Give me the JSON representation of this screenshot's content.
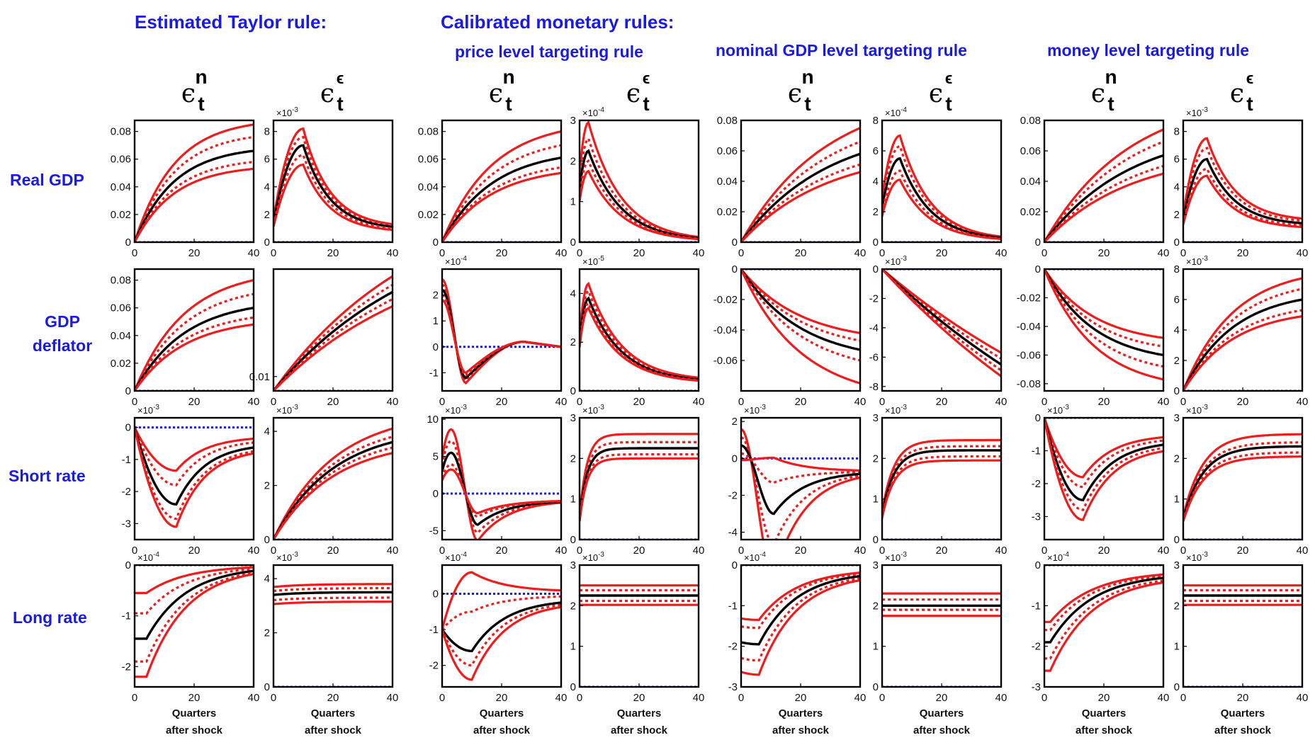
{
  "headers": {
    "estimated": "Estimated Taylor rule:",
    "calibrated": "Calibrated monetary rules:",
    "rules": [
      "price level targeting rule",
      "nominal GDP level targeting rule",
      "money level targeting rule"
    ]
  },
  "rows": [
    "Real GDP",
    "GDP\ndeflator",
    "Short rate",
    "Long rate"
  ],
  "shock_cols": [
    {
      "base": "ϵ",
      "sup": "n",
      "sub": "t"
    },
    {
      "base": "ϵ",
      "sup": "ϵ",
      "sub": "t"
    }
  ],
  "xlabel": [
    "Quarters",
    "after shock"
  ],
  "colors": {
    "header": "#1a1ae6",
    "median": "#000000",
    "band": "#ee1c1c",
    "zero": "#1a1ae6"
  },
  "chart_data": {
    "type": "line",
    "x": {
      "range": [
        0,
        40
      ],
      "ticks": [
        0,
        20,
        40
      ]
    },
    "description_series": [
      "median",
      "inner-band-upper",
      "inner-band-lower",
      "outer-band-upper",
      "outer-band-lower",
      "zero-line"
    ],
    "panels": [
      {
        "row": 0,
        "col": 0,
        "ylim": [
          0,
          0.088
        ],
        "yticks": [
          "0",
          "0.02",
          "0.04",
          "0.06",
          "0.08"
        ],
        "yvals": [
          0,
          0.02,
          0.04,
          0.06,
          0.08
        ],
        "mult": "",
        "shape": "rise",
        "k": 0.075,
        "peak": 0.066,
        "bands": [
          0.085,
          0.076,
          0.058,
          0.053
        ]
      },
      {
        "row": 0,
        "col": 1,
        "ylim": [
          0,
          8.8
        ],
        "yticks": [
          "0",
          "2",
          "4",
          "6",
          "8"
        ],
        "yvals": [
          0,
          2,
          4,
          6,
          8
        ],
        "mult": "×10^-3",
        "shape": "hump",
        "y0": 1.4,
        "tp": 10,
        "peak": 7.0,
        "end": 0.9,
        "bands": [
          8.2,
          7.6,
          6.3,
          5.6
        ]
      },
      {
        "row": 0,
        "col": 2,
        "ylim": [
          0,
          0.088
        ],
        "yticks": [
          "0",
          "0.02",
          "0.04",
          "0.06",
          "0.08"
        ],
        "yvals": [
          0,
          0.02,
          0.04,
          0.06,
          0.08
        ],
        "mult": "",
        "shape": "rise",
        "k": 0.06,
        "peak": 0.061,
        "bands": [
          0.08,
          0.07,
          0.054,
          0.05
        ]
      },
      {
        "row": 0,
        "col": 3,
        "ylim": [
          0,
          3.0
        ],
        "yticks": [
          "0",
          "1",
          "2",
          "3"
        ],
        "yvals": [
          0,
          1,
          2,
          3
        ],
        "mult": "×10^-4",
        "shape": "hump",
        "y0": 1.3,
        "tp": 3,
        "peak": 2.25,
        "end": 0.02,
        "bands": [
          2.95,
          2.55,
          2.0,
          1.75
        ]
      },
      {
        "row": 0,
        "col": 4,
        "ylim": [
          0,
          0.08
        ],
        "yticks": [
          "0",
          "0.02",
          "0.04",
          "0.06",
          "0.08"
        ],
        "yvals": [
          0,
          0.02,
          0.04,
          0.06,
          0.08
        ],
        "mult": "",
        "shape": "rise",
        "k": 0.035,
        "peak": 0.058,
        "bands": [
          0.075,
          0.066,
          0.051,
          0.046
        ]
      },
      {
        "row": 0,
        "col": 5,
        "ylim": [
          0,
          8.0
        ],
        "yticks": [
          "0",
          "2",
          "4",
          "6",
          "8"
        ],
        "yvals": [
          0,
          2,
          4,
          6,
          8
        ],
        "mult": "×10^-4",
        "shape": "hump",
        "y0": 2.3,
        "tp": 6,
        "peak": 5.5,
        "end": 0.1,
        "bands": [
          7.0,
          6.3,
          4.7,
          4.1
        ]
      },
      {
        "row": 0,
        "col": 6,
        "ylim": [
          0,
          0.08
        ],
        "yticks": [
          "0",
          "0.02",
          "0.04",
          "0.06",
          "0.08"
        ],
        "yvals": [
          0,
          0.02,
          0.04,
          0.06,
          0.08
        ],
        "mult": "",
        "shape": "rise",
        "k": 0.035,
        "peak": 0.057,
        "bands": [
          0.074,
          0.066,
          0.05,
          0.045
        ]
      },
      {
        "row": 0,
        "col": 7,
        "ylim": [
          0,
          8.8
        ],
        "yticks": [
          "0",
          "2",
          "4",
          "6",
          "8"
        ],
        "yvals": [
          0,
          2,
          4,
          6,
          8
        ],
        "mult": "×10^-3",
        "shape": "hump",
        "y0": 1.6,
        "tp": 8,
        "peak": 6.0,
        "end": 1.2,
        "bands": [
          7.5,
          6.8,
          5.3,
          4.8
        ]
      },
      {
        "row": 1,
        "col": 0,
        "ylim": [
          0,
          0.088
        ],
        "yticks": [
          "0",
          "0.02",
          "0.04",
          "0.06",
          "0.08"
        ],
        "yvals": [
          0,
          0.02,
          0.04,
          0.06,
          0.08
        ],
        "mult": "",
        "shape": "rise",
        "k": 0.06,
        "peak": 0.06,
        "bands": [
          0.08,
          0.07,
          0.053,
          0.048
        ]
      },
      {
        "row": 1,
        "col": 1,
        "ylim": [
          0,
          0.085
        ],
        "yticks": [
          "0.01"
        ],
        "yvals": [
          0.01
        ],
        "mult": "",
        "shape": "rise",
        "k": 0.02,
        "peak": 0.069,
        "bands": [
          0.08,
          0.074,
          0.064,
          0.059
        ]
      },
      {
        "row": 1,
        "col": 2,
        "ylim": [
          -1.7,
          3.0
        ],
        "yticks": [
          "-1",
          "0",
          "1",
          "2"
        ],
        "yvals": [
          -1,
          0,
          1,
          2
        ],
        "mult": "×10^-4",
        "shape": "osc",
        "y0": 2.2,
        "trough": -1.2,
        "tt": 8,
        "over": 0.2,
        "end": 0,
        "bands": [
          2.6,
          2.4,
          2.0,
          1.8
        ]
      },
      {
        "row": 1,
        "col": 3,
        "ylim": [
          0,
          5.0
        ],
        "yticks": [
          "0",
          "2",
          "4"
        ],
        "yvals": [
          0,
          2,
          4
        ],
        "mult": "×10^-5",
        "shape": "hump",
        "y0": 2.0,
        "tp": 3,
        "peak": 3.8,
        "end": 0.35,
        "bands": [
          4.4,
          4.1,
          3.6,
          3.4
        ]
      },
      {
        "row": 1,
        "col": 4,
        "ylim": [
          -0.08,
          0
        ],
        "yticks": [
          "0",
          "-0.02",
          "-0.04",
          "-0.06"
        ],
        "yvals": [
          0,
          -0.02,
          -0.04,
          -0.06
        ],
        "mult": "",
        "shape": "fall",
        "k": 0.05,
        "peak": -0.053,
        "bands": [
          -0.042,
          -0.047,
          -0.06,
          -0.075
        ]
      },
      {
        "row": 1,
        "col": 5,
        "ylim": [
          -8.3,
          0
        ],
        "yticks": [
          "0",
          "-2",
          "-4",
          "-6",
          "-8"
        ],
        "yvals": [
          0,
          -2,
          -4,
          -6,
          -8
        ],
        "mult": "×10^-3",
        "shape": "fall",
        "k": 0.01,
        "peak": -6.5,
        "bands": [
          -5.7,
          -6.1,
          -6.9,
          -7.3
        ]
      },
      {
        "row": 1,
        "col": 6,
        "ylim": [
          -0.085,
          0
        ],
        "yticks": [
          "0",
          "-0.02",
          "-0.04",
          "-0.06",
          "-0.08"
        ],
        "yvals": [
          0,
          -0.02,
          -0.04,
          -0.06,
          -0.08
        ],
        "mult": "",
        "shape": "fall",
        "k": 0.06,
        "peak": -0.06,
        "bands": [
          -0.048,
          -0.054,
          -0.068,
          -0.077
        ]
      },
      {
        "row": 1,
        "col": 7,
        "ylim": [
          0,
          8.0
        ],
        "yticks": [
          "0",
          "2",
          "4",
          "6",
          "8"
        ],
        "yvals": [
          0,
          2,
          4,
          6,
          8
        ],
        "mult": "×10^-3",
        "shape": "rise",
        "k": 0.06,
        "peak": 6.0,
        "bands": [
          7.4,
          6.7,
          5.3,
          4.9
        ]
      },
      {
        "row": 2,
        "col": 0,
        "ylim": [
          -3.5,
          0.3
        ],
        "yticks": [
          "-3",
          "-2",
          "-1",
          "0"
        ],
        "yvals": [
          -3,
          -2,
          -1,
          0
        ],
        "mult": "×10^-3",
        "shape": "dip",
        "y0": 0,
        "tt": 14,
        "trough": -2.4,
        "end": -0.5,
        "bands": [
          -1.35,
          -1.8,
          -2.85,
          -3.1
        ]
      },
      {
        "row": 2,
        "col": 1,
        "ylim": [
          0,
          4.5
        ],
        "yticks": [
          "0",
          "2",
          "4"
        ],
        "yvals": [
          0,
          2,
          4
        ],
        "mult": "×10^-3",
        "shape": "rise",
        "k": 0.05,
        "peak": 3.6,
        "bands": [
          4.1,
          3.8,
          3.4,
          3.2
        ]
      },
      {
        "row": 2,
        "col": 2,
        "ylim": [
          -6.2,
          10.2
        ],
        "yticks": [
          "-5",
          "0",
          "5",
          "10"
        ],
        "yvals": [
          -5,
          0,
          5,
          10
        ],
        "mult": "×10^-3",
        "shape": "osc",
        "y0": 3.0,
        "tp": 3,
        "peak": 5.5,
        "trough": -4.2,
        "tt": 12,
        "end": -0.9,
        "bands": [
          8.8,
          7.2,
          4.0,
          3.3
        ]
      },
      {
        "row": 2,
        "col": 3,
        "ylim": [
          0,
          3.0
        ],
        "yticks": [
          "0",
          "1",
          "2",
          "3"
        ],
        "yvals": [
          0,
          1,
          2,
          3
        ],
        "mult": "×10^-3",
        "shape": "sat",
        "y0": 0.5,
        "k": 0.4,
        "peak": 2.25,
        "bands": [
          2.6,
          2.4,
          2.1,
          2.0
        ]
      },
      {
        "row": 2,
        "col": 4,
        "ylim": [
          -4.4,
          2.2
        ],
        "yticks": [
          "-4",
          "-2",
          "0",
          "2"
        ],
        "yvals": [
          -4,
          -2,
          0,
          2
        ],
        "mult": "×10^-3",
        "shape": "osc",
        "y0": 0.7,
        "tp": 0,
        "peak": 0.7,
        "trough": -3.0,
        "tt": 11,
        "end": -0.7,
        "bands": [
          1.8,
          1.3,
          0.3,
          -0.1
        ]
      },
      {
        "row": 2,
        "col": 5,
        "ylim": [
          0,
          3.0
        ],
        "yticks": [
          "0",
          "1",
          "2",
          "3"
        ],
        "yvals": [
          0,
          1,
          2,
          3
        ],
        "mult": "×10^-3",
        "shape": "sat",
        "y0": 0.6,
        "k": 0.25,
        "peak": 2.2,
        "bands": [
          2.45,
          2.3,
          2.05,
          1.95
        ]
      },
      {
        "row": 2,
        "col": 6,
        "ylim": [
          -3.7,
          0
        ],
        "yticks": [
          "0",
          "-1",
          "-2",
          "-3"
        ],
        "yvals": [
          0,
          -1,
          -2,
          -3
        ],
        "mult": "×10^-3",
        "shape": "dip",
        "y0": 0,
        "tt": 13,
        "trough": -2.5,
        "end": -0.7,
        "bands": [
          -1.8,
          -2.1,
          -2.8,
          -3.1
        ]
      },
      {
        "row": 2,
        "col": 7,
        "ylim": [
          0,
          3.0
        ],
        "yticks": [
          "0",
          "1",
          "2",
          "3"
        ],
        "yvals": [
          0,
          1,
          2,
          3
        ],
        "mult": "×10^-3",
        "shape": "sat",
        "y0": 0.5,
        "k": 0.15,
        "peak": 2.3,
        "bands": [
          2.6,
          2.4,
          2.15,
          2.05
        ]
      },
      {
        "row": 3,
        "col": 0,
        "ylim": [
          -2.4,
          0
        ],
        "yticks": [
          "0",
          "-1",
          "-2"
        ],
        "yvals": [
          0,
          -1,
          -2
        ],
        "mult": "×10^-4",
        "shape": "recover",
        "y0": -1.45,
        "tt": 4,
        "trough": -1.45,
        "end": -0.02,
        "bands": [
          -0.55,
          -0.95,
          -1.9,
          -2.2
        ]
      },
      {
        "row": 3,
        "col": 1,
        "ylim": [
          0,
          4.5
        ],
        "yticks": [
          "0",
          "2",
          "4"
        ],
        "yvals": [
          0,
          2,
          4
        ],
        "mult": "×10^-3",
        "shape": "flat",
        "y0": 3.4,
        "peak": 3.5,
        "bands": [
          3.8,
          3.65,
          3.3,
          3.15
        ]
      },
      {
        "row": 3,
        "col": 2,
        "ylim": [
          -2.6,
          0.8
        ],
        "yticks": [
          "-2",
          "-1",
          "0"
        ],
        "yvals": [
          -2,
          -1,
          0
        ],
        "mult": "×10^-4",
        "shape": "dip",
        "y0": -1.0,
        "tt": 10,
        "trough": -1.6,
        "end": -0.15,
        "bands": [
          0.6,
          -0.5,
          -2.0,
          -2.4
        ]
      },
      {
        "row": 3,
        "col": 3,
        "ylim": [
          0,
          3.0
        ],
        "yticks": [
          "0",
          "1",
          "2",
          "3"
        ],
        "yvals": [
          0,
          1,
          2,
          3
        ],
        "mult": "×10^-3",
        "shape": "flat",
        "y0": 2.25,
        "peak": 2.25,
        "bands": [
          2.5,
          2.38,
          2.12,
          2.02
        ]
      },
      {
        "row": 3,
        "col": 4,
        "ylim": [
          -3.0,
          0
        ],
        "yticks": [
          "0",
          "-1",
          "-2",
          "-3"
        ],
        "yvals": [
          0,
          -1,
          -2,
          -3
        ],
        "mult": "×10^-4",
        "shape": "recover",
        "y0": -1.9,
        "tt": 6,
        "trough": -1.95,
        "end": -0.15,
        "bands": [
          -1.35,
          -1.55,
          -2.35,
          -2.7
        ]
      },
      {
        "row": 3,
        "col": 5,
        "ylim": [
          0,
          3.0
        ],
        "yticks": [
          "0",
          "1",
          "2",
          "3"
        ],
        "yvals": [
          0,
          1,
          2,
          3
        ],
        "mult": "×10^-3",
        "shape": "flat",
        "y0": 2.0,
        "peak": 2.0,
        "bands": [
          2.3,
          2.15,
          1.9,
          1.75
        ]
      },
      {
        "row": 3,
        "col": 6,
        "ylim": [
          -3.0,
          0
        ],
        "yticks": [
          "0",
          "-1",
          "-2",
          "-3"
        ],
        "yvals": [
          0,
          -1,
          -2,
          -3
        ],
        "mult": "×10^-4",
        "shape": "recover",
        "y0": -1.9,
        "tt": 2,
        "trough": -1.9,
        "end": -0.2,
        "bands": [
          -1.4,
          -1.6,
          -2.3,
          -2.6
        ]
      },
      {
        "row": 3,
        "col": 7,
        "ylim": [
          0,
          3.0
        ],
        "yticks": [
          "0",
          "1",
          "2",
          "3"
        ],
        "yvals": [
          0,
          1,
          2,
          3
        ],
        "mult": "×10^-3",
        "shape": "flat",
        "y0": 2.25,
        "peak": 2.25,
        "bands": [
          2.5,
          2.38,
          2.12,
          2.02
        ]
      }
    ]
  }
}
